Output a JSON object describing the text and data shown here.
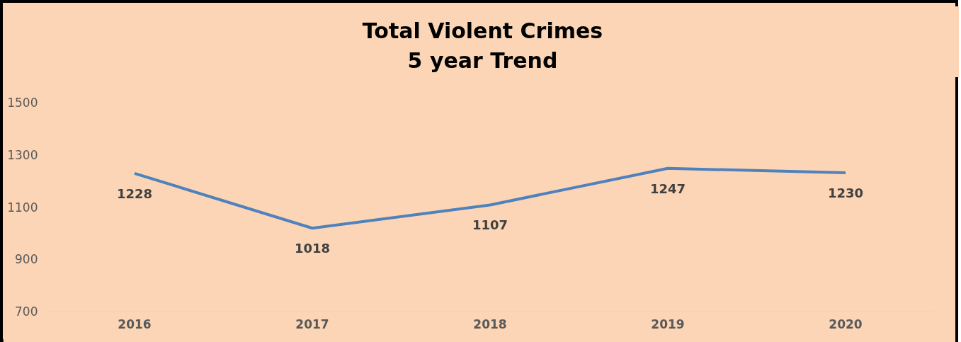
{
  "chart_data": {
    "type": "line",
    "title": "Total Violent Crimes\n5 year Trend",
    "categories": [
      "2016",
      "2017",
      "2018",
      "2019",
      "2020"
    ],
    "series": [
      {
        "color": "#4f81bd",
        "values": [
          1228,
          1018,
          1107,
          1247,
          1230
        ]
      }
    ],
    "ylim": [
      700,
      1500
    ],
    "yticks": [
      700,
      900,
      1100,
      1300,
      1500
    ],
    "grid": false,
    "marker": "none",
    "line_style": "solid",
    "data_labels": true
  }
}
